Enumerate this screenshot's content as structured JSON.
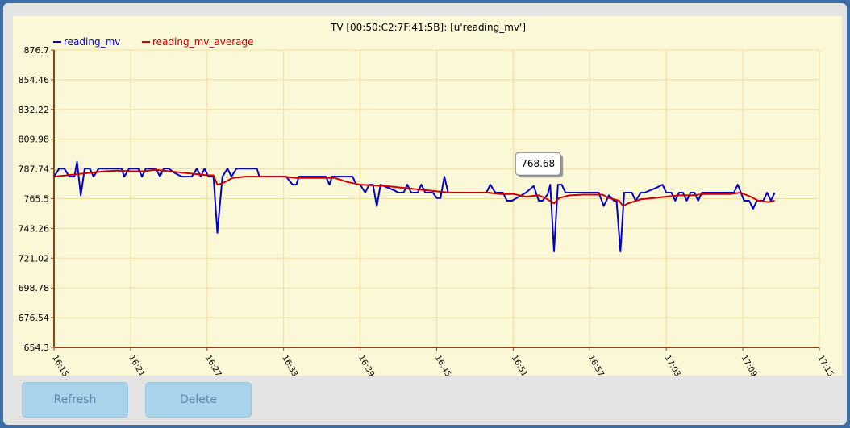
{
  "buttons": {
    "refresh_label": "Refresh",
    "delete_label": "Delete"
  },
  "colors": {
    "window_border": "#3c6ea5",
    "panel_bg": "#e4e4e4",
    "plot_bg": "#fbf8d8",
    "grid": "#f3dca0",
    "series_raw": "#0000c8",
    "series_average": "#cc0000",
    "button_bg": "#a9d3eb",
    "button_text": "#5f87ad"
  },
  "chart_data": {
    "type": "line",
    "title": "TV [00:50:C2:7F:41:5B]: [u'reading_mv']",
    "legend_position": "top-left",
    "grid": true,
    "x_unit": "minutes after 16:15",
    "x_ticks": [
      "16:15",
      "16:21",
      "16:27",
      "16:33",
      "16:39",
      "16:45",
      "16:51",
      "16:57",
      "17:03",
      "17:09",
      "17:15"
    ],
    "y_ticks": [
      "654.3",
      "676.54",
      "698.78",
      "721.02",
      "743.26",
      "765.5",
      "787.74",
      "809.98",
      "832.22",
      "854.46",
      "876.7"
    ],
    "ylim": [
      654.3,
      876.7
    ],
    "xlim": [
      0,
      60
    ],
    "tooltip": {
      "text": "768.68",
      "x": 38.2,
      "y": 768.68
    },
    "series": [
      {
        "name": "reading_mv",
        "color": "#0000c8",
        "points": [
          [
            0,
            782
          ],
          [
            0.4,
            788
          ],
          [
            0.8,
            788
          ],
          [
            1.2,
            782
          ],
          [
            1.6,
            782
          ],
          [
            1.8,
            793
          ],
          [
            2.1,
            768
          ],
          [
            2.4,
            788
          ],
          [
            2.8,
            788
          ],
          [
            3.1,
            782
          ],
          [
            3.5,
            788
          ],
          [
            4.0,
            788
          ],
          [
            4.8,
            788
          ],
          [
            5.3,
            788
          ],
          [
            5.5,
            782
          ],
          [
            5.9,
            788
          ],
          [
            6.6,
            788
          ],
          [
            6.9,
            782
          ],
          [
            7.2,
            788
          ],
          [
            8.0,
            788
          ],
          [
            8.3,
            782
          ],
          [
            8.6,
            788
          ],
          [
            9.0,
            788
          ],
          [
            9.4,
            785
          ],
          [
            10.0,
            782
          ],
          [
            10.8,
            782
          ],
          [
            11.2,
            788
          ],
          [
            11.5,
            782
          ],
          [
            11.8,
            788
          ],
          [
            12.1,
            782
          ],
          [
            12.5,
            782
          ],
          [
            12.8,
            740
          ],
          [
            13.2,
            782
          ],
          [
            13.6,
            788
          ],
          [
            13.9,
            782
          ],
          [
            14.3,
            788
          ],
          [
            15.9,
            788
          ],
          [
            16.1,
            782
          ],
          [
            18.2,
            782
          ],
          [
            18.7,
            776
          ],
          [
            19.0,
            776
          ],
          [
            19.2,
            782
          ],
          [
            21.0,
            782
          ],
          [
            21.3,
            782
          ],
          [
            21.6,
            776
          ],
          [
            21.8,
            782
          ],
          [
            22.0,
            782
          ],
          [
            23.4,
            782
          ],
          [
            23.7,
            776
          ],
          [
            24.0,
            776
          ],
          [
            24.4,
            770
          ],
          [
            24.7,
            776
          ],
          [
            25.0,
            776
          ],
          [
            25.3,
            760
          ],
          [
            25.6,
            776
          ],
          [
            26.6,
            772
          ],
          [
            27.0,
            770
          ],
          [
            27.4,
            770
          ],
          [
            27.7,
            776
          ],
          [
            28.0,
            770
          ],
          [
            28.5,
            770
          ],
          [
            28.8,
            776
          ],
          [
            29.1,
            770
          ],
          [
            29.7,
            770
          ],
          [
            30.0,
            766
          ],
          [
            30.3,
            766
          ],
          [
            30.6,
            782
          ],
          [
            30.9,
            770
          ],
          [
            32.0,
            770
          ],
          [
            33.0,
            770
          ],
          [
            33.9,
            770
          ],
          [
            34.2,
            776
          ],
          [
            34.6,
            770
          ],
          [
            35.2,
            770
          ],
          [
            35.5,
            764
          ],
          [
            35.9,
            764
          ],
          [
            37.0,
            770
          ],
          [
            37.6,
            775
          ],
          [
            38.0,
            764
          ],
          [
            38.3,
            764
          ],
          [
            38.7,
            768.68
          ],
          [
            38.9,
            776
          ],
          [
            39.2,
            726
          ],
          [
            39.5,
            776
          ],
          [
            39.8,
            776
          ],
          [
            40.1,
            770
          ],
          [
            41.0,
            770
          ],
          [
            42.0,
            770
          ],
          [
            42.7,
            770
          ],
          [
            43.1,
            760
          ],
          [
            43.5,
            768
          ],
          [
            43.9,
            764
          ],
          [
            44.1,
            764
          ],
          [
            44.4,
            726
          ],
          [
            44.7,
            770
          ],
          [
            45.3,
            770
          ],
          [
            45.6,
            764
          ],
          [
            46.0,
            770
          ],
          [
            46.3,
            770
          ],
          [
            47.3,
            774
          ],
          [
            47.7,
            776
          ],
          [
            48.0,
            770
          ],
          [
            48.4,
            770
          ],
          [
            48.7,
            764
          ],
          [
            49.0,
            770
          ],
          [
            49.3,
            770
          ],
          [
            49.6,
            764
          ],
          [
            49.9,
            770
          ],
          [
            50.2,
            770
          ],
          [
            50.5,
            764
          ],
          [
            50.8,
            770
          ],
          [
            51.2,
            770
          ],
          [
            52.0,
            770
          ],
          [
            53.3,
            770
          ],
          [
            53.6,
            776
          ],
          [
            54.1,
            764
          ],
          [
            54.5,
            764
          ],
          [
            54.8,
            758
          ],
          [
            55.1,
            764
          ],
          [
            55.6,
            764
          ],
          [
            55.9,
            770
          ],
          [
            56.2,
            764
          ],
          [
            56.5,
            770
          ]
        ]
      },
      {
        "name": "reading_mv_average",
        "color": "#cc0000",
        "points": [
          [
            0,
            782
          ],
          [
            1.0,
            783
          ],
          [
            2.0,
            784
          ],
          [
            3.0,
            785
          ],
          [
            4.0,
            786
          ],
          [
            5.0,
            786.5
          ],
          [
            6.0,
            786
          ],
          [
            7.0,
            786
          ],
          [
            8.0,
            787
          ],
          [
            9.0,
            786
          ],
          [
            10.0,
            785
          ],
          [
            11.0,
            784
          ],
          [
            12.0,
            783
          ],
          [
            12.5,
            783
          ],
          [
            12.8,
            776
          ],
          [
            13.2,
            777
          ],
          [
            14.0,
            781
          ],
          [
            15.0,
            782
          ],
          [
            16.0,
            782
          ],
          [
            18.0,
            782
          ],
          [
            19.0,
            781
          ],
          [
            21.0,
            781
          ],
          [
            22.0,
            781
          ],
          [
            23.0,
            778
          ],
          [
            24.0,
            776
          ],
          [
            26.0,
            775
          ],
          [
            28.0,
            773
          ],
          [
            29.0,
            772
          ],
          [
            30.0,
            771
          ],
          [
            31.0,
            770
          ],
          [
            33.0,
            770
          ],
          [
            34.0,
            770
          ],
          [
            35.0,
            769
          ],
          [
            36.0,
            769
          ],
          [
            37.0,
            767
          ],
          [
            38.0,
            768
          ],
          [
            38.5,
            766
          ],
          [
            39.2,
            762
          ],
          [
            39.6,
            766
          ],
          [
            40.4,
            768
          ],
          [
            41.5,
            768.5
          ],
          [
            43.0,
            768.5
          ],
          [
            43.5,
            766
          ],
          [
            44.3,
            764
          ],
          [
            44.6,
            760
          ],
          [
            45.0,
            762
          ],
          [
            46.0,
            765
          ],
          [
            47.0,
            766
          ],
          [
            48.0,
            767
          ],
          [
            49.0,
            768
          ],
          [
            50.0,
            768
          ],
          [
            51.0,
            769
          ],
          [
            53.0,
            769
          ],
          [
            53.8,
            770
          ],
          [
            54.6,
            767
          ],
          [
            55.2,
            764
          ],
          [
            56.0,
            763
          ],
          [
            56.5,
            764
          ]
        ]
      }
    ]
  }
}
